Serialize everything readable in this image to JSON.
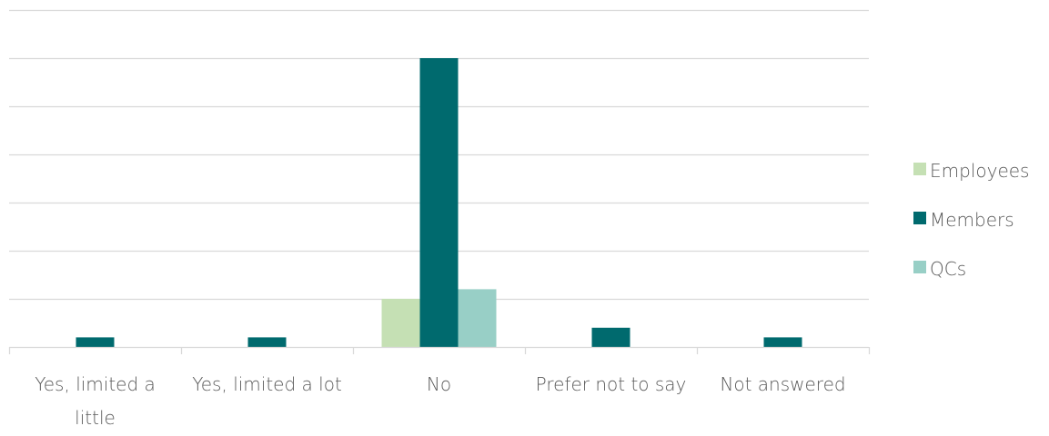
{
  "chart_data": {
    "type": "bar",
    "title": "",
    "xlabel": "",
    "ylabel": "",
    "categories": [
      [
        "Yes, limited a",
        "little"
      ],
      [
        "Yes, limited a lot"
      ],
      [
        "No"
      ],
      [
        "Prefer not to say"
      ],
      [
        "Not answered"
      ]
    ],
    "series": [
      {
        "name": "Employees",
        "color": "#c5e0b4",
        "values": [
          0,
          0,
          1,
          0,
          0
        ]
      },
      {
        "name": "Members",
        "color": "#006a6e",
        "values": [
          0.2,
          0.2,
          6,
          0.4,
          0.2
        ]
      },
      {
        "name": "QCs",
        "color": "#98cfc6",
        "values": [
          0,
          0,
          1.2,
          0,
          0
        ]
      }
    ],
    "ylim": [
      0,
      7
    ],
    "y_gridlines": [
      0,
      1,
      2,
      3,
      4,
      5,
      6,
      7
    ],
    "y_tick_labels_shown": false,
    "grid": true,
    "legend_position": "right"
  }
}
